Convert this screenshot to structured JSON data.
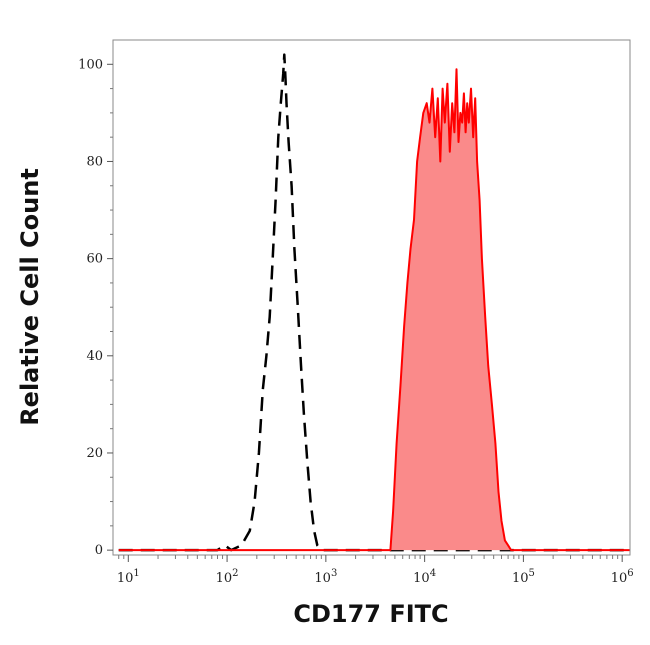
{
  "chart_data": {
    "type": "area",
    "title": "",
    "xlabel": "CD177 FITC",
    "ylabel": "Relative Cell Count",
    "x_scale": "log",
    "xlim": [
      7,
      1200000
    ],
    "ylim": [
      -1,
      105
    ],
    "x_ticks": [
      {
        "base": "10",
        "exp": "1",
        "value": 10
      },
      {
        "base": "10",
        "exp": "2",
        "value": 100
      },
      {
        "base": "10",
        "exp": "3",
        "value": 1000
      },
      {
        "base": "10",
        "exp": "4",
        "value": 10000
      },
      {
        "base": "10",
        "exp": "5",
        "value": 100000
      },
      {
        "base": "10",
        "exp": "6",
        "value": 1000000
      }
    ],
    "y_ticks": [
      {
        "label": "0",
        "value": 0
      },
      {
        "label": "20",
        "value": 20
      },
      {
        "label": "40",
        "value": 40
      },
      {
        "label": "60",
        "value": 60
      },
      {
        "label": "80",
        "value": 80
      },
      {
        "label": "100",
        "value": 100
      }
    ],
    "grid": false,
    "series": [
      {
        "style": "dashed-outline",
        "color": "#000000",
        "x": [
          8,
          80,
          95,
          110,
          140,
          170,
          190,
          210,
          230,
          250,
          270,
          290,
          310,
          330,
          350,
          370,
          380,
          390,
          400,
          420,
          450,
          480,
          520,
          560,
          600,
          650,
          700,
          760,
          820,
          900,
          1000,
          10000,
          1200000
        ],
        "y": [
          0,
          0,
          1,
          0,
          1,
          4,
          10,
          20,
          33,
          40,
          48,
          60,
          72,
          85,
          92,
          98,
          102,
          97,
          92,
          84,
          75,
          62,
          50,
          38,
          28,
          18,
          10,
          4,
          1,
          0,
          0,
          0,
          0
        ]
      },
      {
        "style": "filled",
        "color": "#ff0000",
        "fill": "#fa8a8a",
        "x": [
          8,
          4500,
          4800,
          5200,
          5700,
          6200,
          6700,
          7200,
          7800,
          8400,
          9000,
          9700,
          10500,
          11200,
          12000,
          12800,
          13600,
          14400,
          15200,
          16000,
          17000,
          18000,
          19000,
          20000,
          21000,
          22000,
          23000,
          24000,
          25000,
          26000,
          27000,
          28000,
          29500,
          31000,
          32500,
          34000,
          36000,
          38000,
          41000,
          44000,
          48000,
          52000,
          56000,
          60000,
          65000,
          70000,
          75000,
          1200000
        ],
        "y": [
          0,
          0,
          8,
          22,
          34,
          46,
          55,
          62,
          68,
          80,
          85,
          90,
          92,
          88,
          95,
          85,
          93,
          80,
          95,
          88,
          96,
          82,
          92,
          86,
          99,
          84,
          90,
          88,
          94,
          86,
          92,
          88,
          95,
          85,
          93,
          80,
          72,
          60,
          48,
          38,
          30,
          22,
          12,
          6,
          2,
          1,
          0,
          0
        ]
      }
    ]
  }
}
